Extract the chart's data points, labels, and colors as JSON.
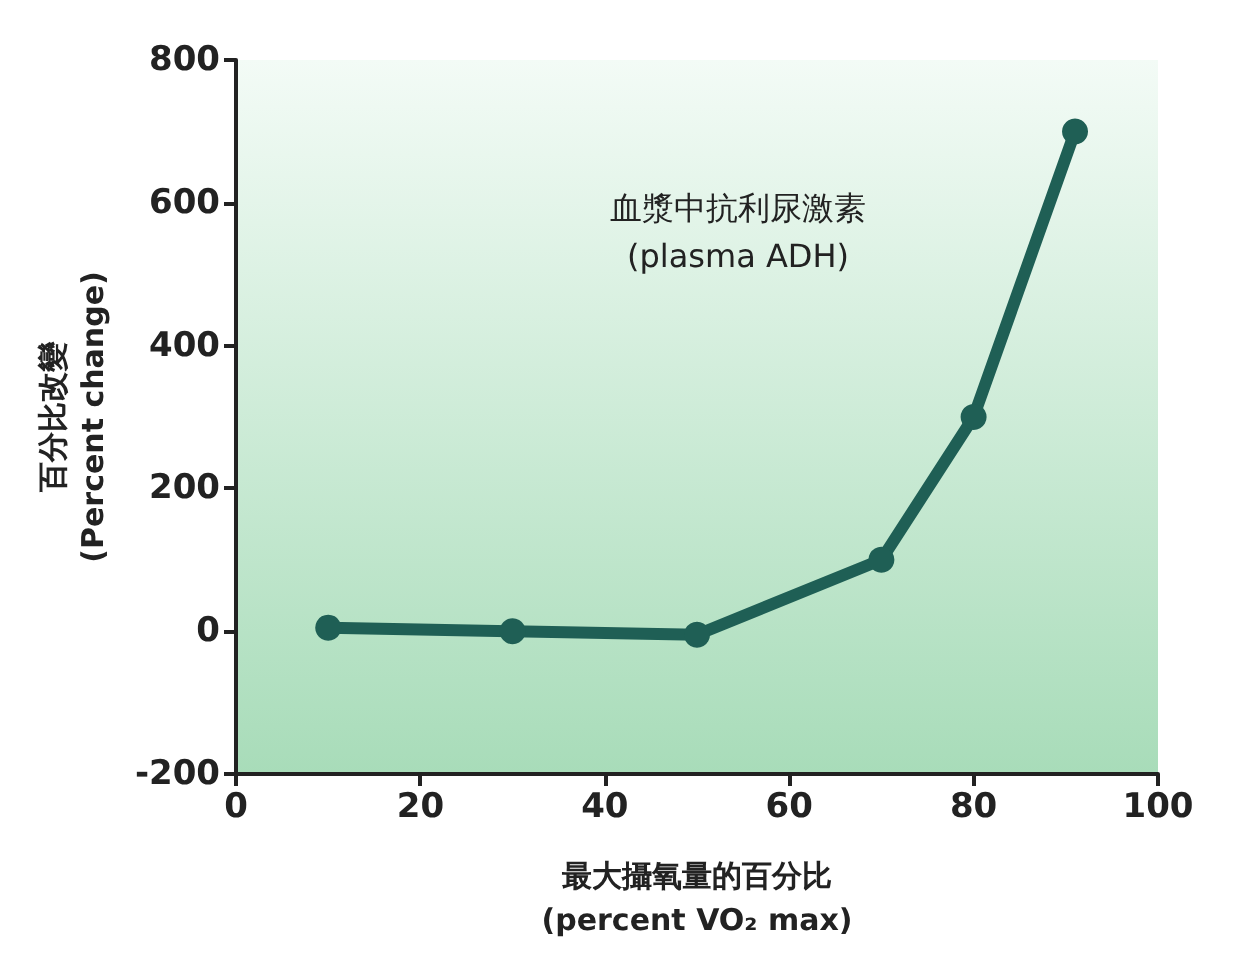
{
  "chart_data": {
    "type": "line",
    "xlabel": "最大攝氧量的百分比\n(percent VO₂ max)",
    "ylabel": "百分比改變\n(Percent change)",
    "annotations": [
      "血漿中抗利尿激素\n(plasma ADH)"
    ],
    "x": [
      10,
      30,
      50,
      70,
      80,
      91
    ],
    "series": [
      {
        "color": "#1f5f55",
        "values": [
          5,
          0,
          -5,
          100,
          300,
          700
        ]
      }
    ],
    "xlim": [
      0,
      100
    ],
    "xticks": [
      0,
      20,
      40,
      60,
      80,
      100
    ],
    "ylim": [
      -200,
      800
    ],
    "yticks": [
      -200,
      0,
      200,
      400,
      600,
      800
    ],
    "grid": false,
    "marker": "circle",
    "line_style": "solid"
  }
}
